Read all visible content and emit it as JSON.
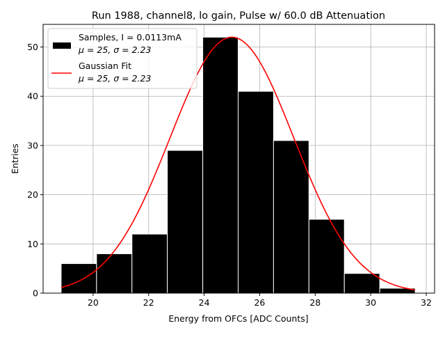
{
  "chart_data": {
    "type": "bar",
    "title": "Run 1988, channel8, lo gain, Pulse w/ 60.0 dB Attenuation",
    "xlabel": "Energy from OFCs [ADC Counts]",
    "ylabel": "Entries",
    "xlim": [
      18.2,
      32.3
    ],
    "ylim": [
      0,
      54.6
    ],
    "xticks": [
      20,
      22,
      24,
      26,
      28,
      30,
      32
    ],
    "yticks": [
      0,
      10,
      20,
      30,
      40,
      50
    ],
    "grid": true,
    "bin_edges": [
      18.85,
      20.125,
      21.4,
      22.675,
      23.95,
      25.225,
      26.5,
      27.775,
      29.05,
      30.325,
      31.6
    ],
    "values": [
      6,
      8,
      12,
      29,
      52,
      41,
      31,
      15,
      4,
      1
    ],
    "bar_color": "#000000",
    "bar_edge_color": "#ffffff",
    "fit": {
      "name": "Gaussian Fit",
      "mu": 25,
      "sigma": 2.23,
      "amplitude": 52,
      "x_range": [
        18.85,
        31.6
      ],
      "color": "#ff0000"
    },
    "legend": {
      "placement": "top-left",
      "entries": [
        {
          "line1": "Samples, I = 0.0113mA",
          "line2": "μ = 25, σ = 2.23",
          "type": "patch",
          "color": "#000000"
        },
        {
          "line1": "Gaussian Fit",
          "line2": "μ = 25, σ = 2.23",
          "type": "line",
          "color": "#ff0000"
        }
      ]
    }
  }
}
